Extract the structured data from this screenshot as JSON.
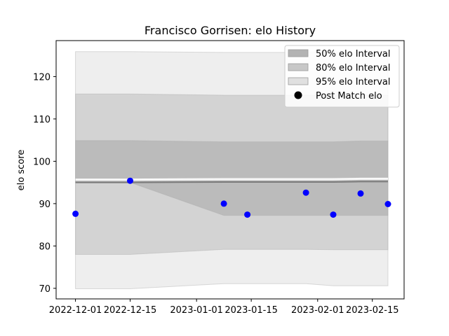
{
  "chart_data": {
    "type": "scatter",
    "title": "Francisco Gorrisen: elo History",
    "xlabel": "",
    "ylabel": "elo score",
    "x_ticks": [
      "2022-12-01",
      "2022-12-15",
      "2023-01-01",
      "2023-01-15",
      "2023-02-01",
      "2023-02-15"
    ],
    "y_ticks": [
      70,
      80,
      90,
      100,
      110,
      120
    ],
    "xlim": [
      "2022-11-30",
      "2023-02-19"
    ],
    "ylim": [
      67.5,
      128.5
    ],
    "grid": false,
    "legend_position": "top-right",
    "legend": [
      {
        "label": "50% elo Interval",
        "kind": "band",
        "color": "#b3b3b3"
      },
      {
        "label": "80% elo Interval",
        "kind": "band",
        "color": "#c7c7c7"
      },
      {
        "label": "95% elo Interval",
        "kind": "band",
        "color": "#e0e0e0"
      },
      {
        "label": "Post Match elo",
        "kind": "marker",
        "color": "#000000"
      }
    ],
    "x": [
      "2022-12-01",
      "2022-12-15",
      "2023-01-08",
      "2023-01-14",
      "2023-01-29",
      "2023-02-05",
      "2023-02-12",
      "2023-02-19"
    ],
    "intervals": {
      "median": [
        95.0,
        95.0,
        95.1,
        95.1,
        95.1,
        95.1,
        95.2,
        95.2
      ],
      "band_50": {
        "low": [
          95.0,
          95.0,
          87.2,
          87.2,
          87.2,
          87.2,
          87.2,
          87.2
        ],
        "high": [
          104.9,
          104.9,
          104.6,
          104.6,
          104.6,
          104.6,
          104.8,
          104.8
        ]
      },
      "band_80": {
        "low": [
          78.0,
          78.0,
          79.2,
          79.2,
          79.2,
          79.1,
          79.1,
          79.1
        ],
        "high": [
          115.9,
          115.9,
          115.6,
          115.6,
          115.6,
          115.6,
          115.6,
          115.6
        ]
      },
      "band_95": {
        "low": [
          69.9,
          69.9,
          71.1,
          71.1,
          71.1,
          70.6,
          70.6,
          70.6
        ],
        "high": [
          125.9,
          125.9,
          125.7,
          125.7,
          125.7,
          125.7,
          125.7,
          125.7
        ]
      }
    },
    "series": [
      {
        "name": "Post Match elo",
        "color": "#0000ff",
        "points": [
          {
            "x": "2022-12-01",
            "y": 87.6
          },
          {
            "x": "2022-12-15",
            "y": 95.4
          },
          {
            "x": "2023-01-08",
            "y": 90.0
          },
          {
            "x": "2023-01-14",
            "y": 87.4
          },
          {
            "x": "2023-01-29",
            "y": 92.6
          },
          {
            "x": "2023-02-05",
            "y": 87.4
          },
          {
            "x": "2023-02-12",
            "y": 92.4
          },
          {
            "x": "2023-02-19",
            "y": 89.9
          }
        ]
      }
    ]
  }
}
